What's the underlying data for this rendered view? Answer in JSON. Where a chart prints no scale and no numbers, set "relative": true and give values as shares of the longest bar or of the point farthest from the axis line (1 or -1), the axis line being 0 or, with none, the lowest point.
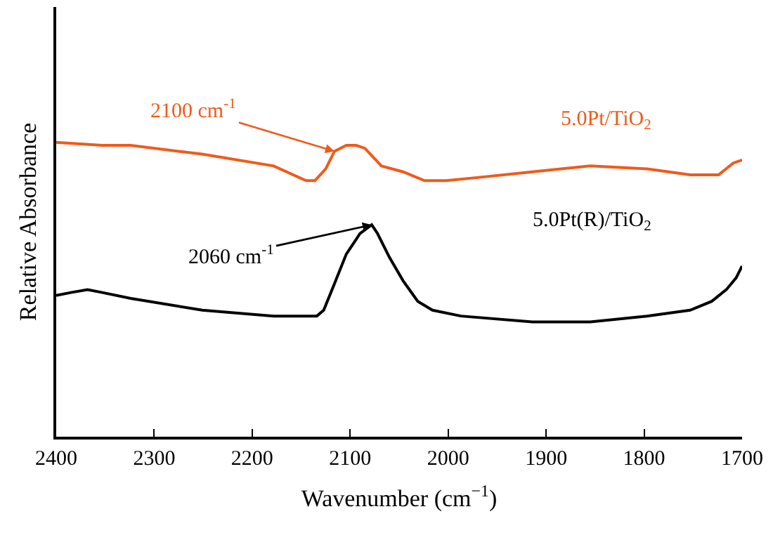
{
  "chart_data": {
    "type": "line",
    "relative": true,
    "xlabel": "Wavenumber (cm$^{−1}$)",
    "ylabel": "Relative Absorbance",
    "xlim": [
      2400,
      1700
    ],
    "xticks": [
      2400,
      2300,
      2200,
      2100,
      2000,
      1900,
      1800,
      1700
    ],
    "legend": false,
    "marker": "none",
    "line_style": "solid",
    "series": [
      {
        "name": "5.0Pt/TiO$_{2}$",
        "color": "#f05a1a",
        "x": [
          2400,
          2353,
          2324,
          2251,
          2178,
          2145,
          2136,
          2125,
          2116,
          2104,
          2094,
          2085,
          2068,
          2046,
          2024,
          2002,
          1972,
          1914,
          1855,
          1797,
          1753,
          1724,
          1709,
          1700
        ],
        "values": [
          1.0,
          0.99,
          0.99,
          0.96,
          0.92,
          0.87,
          0.87,
          0.91,
          0.97,
          0.99,
          0.99,
          0.98,
          0.92,
          0.9,
          0.87,
          0.87,
          0.88,
          0.9,
          0.92,
          0.91,
          0.89,
          0.89,
          0.93,
          0.94
        ]
      },
      {
        "name": "5.0Pt(R)/TiO$_{2}$",
        "color": "#000000",
        "x": [
          2400,
          2385,
          2368,
          2353,
          2324,
          2251,
          2178,
          2134,
          2127,
          2116,
          2104,
          2090,
          2078,
          2072,
          2060,
          2046,
          2031,
          2016,
          1987,
          1914,
          1855,
          1797,
          1753,
          1731,
          1716,
          1706,
          1700
        ],
        "values": [
          0.48,
          0.49,
          0.5,
          0.49,
          0.47,
          0.43,
          0.41,
          0.41,
          0.43,
          0.52,
          0.62,
          0.69,
          0.72,
          0.69,
          0.61,
          0.53,
          0.46,
          0.43,
          0.41,
          0.39,
          0.39,
          0.41,
          0.43,
          0.46,
          0.5,
          0.54,
          0.58
        ]
      }
    ],
    "annotations": [
      {
        "text": "2100 cm$^{-1}$",
        "x": 2116,
        "y": 0.97
      },
      {
        "text": "2060 cm$^{-1}$",
        "x": 2078,
        "y": 0.72
      }
    ]
  }
}
